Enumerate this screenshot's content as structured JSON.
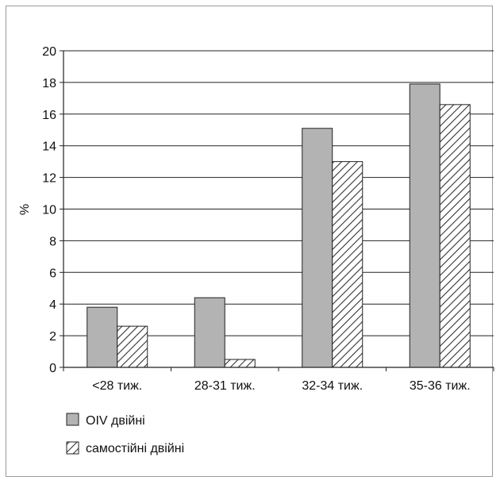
{
  "chart_data": {
    "type": "bar",
    "title": "",
    "xlabel": "",
    "ylabel": "%",
    "ylim": [
      0,
      20
    ],
    "yticks": [
      0,
      2,
      4,
      6,
      8,
      10,
      12,
      14,
      16,
      18,
      20
    ],
    "grid": true,
    "legend_position": "bottom-left",
    "categories": [
      "<28 тиж.",
      "28-31 тиж.",
      "32-34 тиж.",
      "35-36 тиж."
    ],
    "series": [
      {
        "name": "ОІV двійні",
        "values": [
          3.8,
          4.4,
          15.1,
          17.9
        ],
        "fill": "#b3b3b3",
        "pattern": "solid"
      },
      {
        "name": "самостійні двійні",
        "values": [
          2.6,
          0.5,
          13.0,
          16.6
        ],
        "fill": "#ffffff",
        "pattern": "diagonal-hatch"
      }
    ]
  }
}
